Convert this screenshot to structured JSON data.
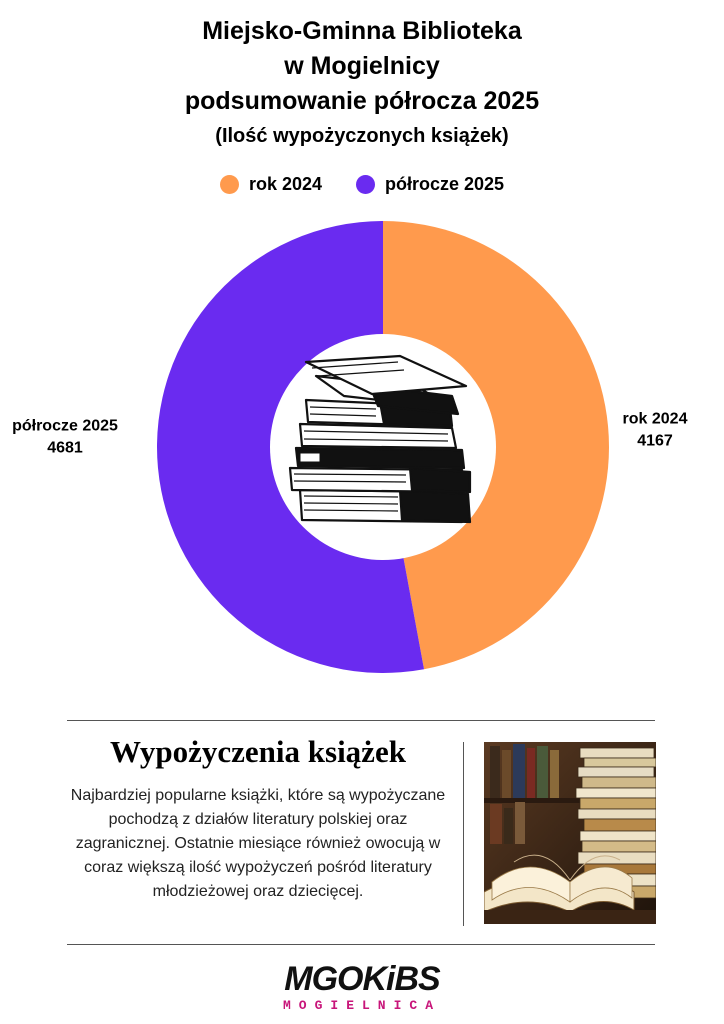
{
  "title": {
    "lines": [
      "Miejsko-Gminna Biblioteka",
      "w Mogielnicy",
      "podsumowanie półrocza 2025"
    ],
    "subtitle": "(Ilość wypożyczonych książek)"
  },
  "legend": [
    {
      "label": "rok 2024",
      "color": "#FF9A4D"
    },
    {
      "label": "półrocze 2025",
      "color": "#6A2BF0"
    }
  ],
  "chart_data": {
    "type": "pie",
    "variant": "donut",
    "title": "",
    "slices": [
      {
        "label": "rok 2024",
        "value": 4167,
        "color": "#FF9A4D"
      },
      {
        "label": "półrocze 2025",
        "value": 4681,
        "color": "#6A2BF0"
      }
    ],
    "center_icon": "stack-of-books-icon"
  },
  "section": {
    "title": "Wypożyczenia książek",
    "body": "Najbardziej popularne książki, które są wypożyczane  pochodzą z działów literatury polskiej oraz zagranicznej. Ostatnie miesiące również owocują w coraz większą ilość wypożyczeń pośród literatury młodzieżowej oraz dziecięcej."
  },
  "photo": {
    "icon": "open-book-photo"
  },
  "logo": {
    "main": "MGOKiBS",
    "sub": "MOGIELNICA",
    "accent": "#C8157A"
  }
}
